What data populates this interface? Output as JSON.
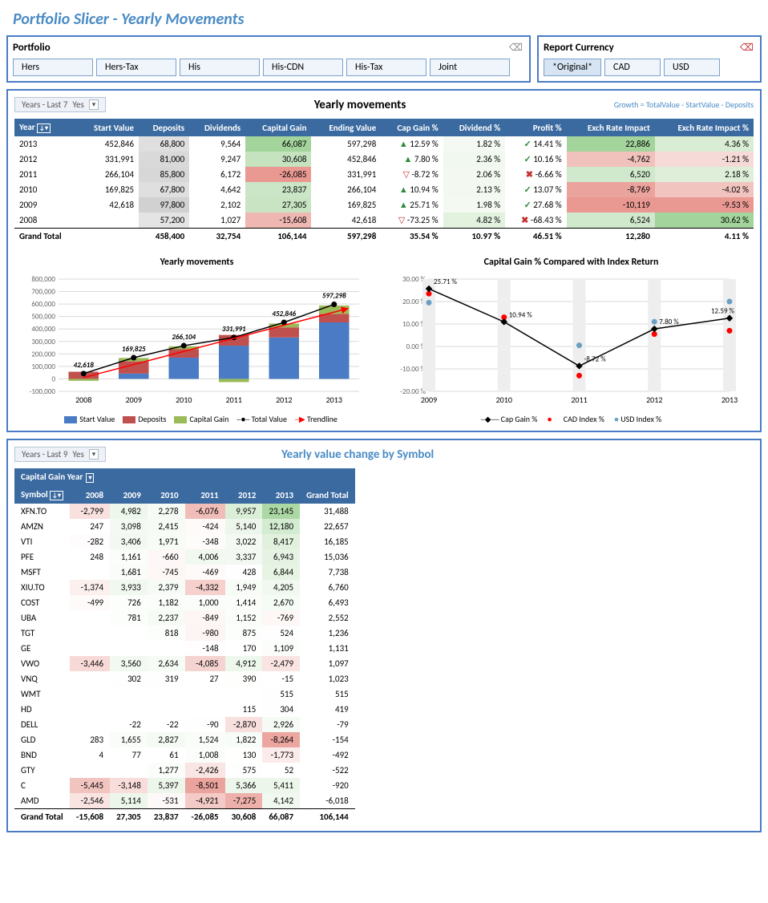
{
  "title": "Portfolio Slicer - Yearly Movements",
  "portfolio_slicer": {
    "title": "Portfolio",
    "items": [
      "Hers",
      "Hers-Tax",
      "His",
      "His-CDN",
      "His-Tax",
      "Joint"
    ]
  },
  "currency_slicer": {
    "title": "Report Currency",
    "items": [
      "*Original*",
      "CAD",
      "USD"
    ],
    "selected": 0
  },
  "filter1": {
    "label": "Years - Last 7",
    "value": "Yes"
  },
  "filter2": {
    "label": "Years - Last 9",
    "value": "Yes"
  },
  "section1_title": "Yearly movements",
  "section1_formula": "Growth = TotalValue - StartValue - Deposits",
  "colors": {
    "header_bg": "#3b6aa0",
    "cg_green_hi": "#a3d49b",
    "cg_green_lo": "#e2f0de",
    "cg_red_hi": "#e99992",
    "cg_red_lo": "#f8e4e2",
    "bar_start": "#4a7bc4",
    "bar_dep": "#c0504d",
    "bar_cg": "#9bbb59",
    "trend": "#ff0000",
    "grid": "#d9d9d9"
  },
  "movements": {
    "columns": [
      "Year",
      "Start Value",
      "Deposits",
      "Dividends",
      "Capital Gain",
      "Ending Value",
      "Cap Gain %",
      "Dividend %",
      "Profit %",
      "Exch Rate Impact",
      "Exch Rate Impact %"
    ],
    "rows": [
      {
        "year": "2013",
        "start": 452846,
        "dep": 68800,
        "div": 9564,
        "cg": 66087,
        "end": 597298,
        "cgp": 12.59,
        "divp": 1.82,
        "pp": 14.41,
        "er": 22886,
        "erp": 4.36,
        "cg_dir": "up",
        "p_dir": "ok"
      },
      {
        "year": "2012",
        "start": 331991,
        "dep": 81000,
        "div": 9247,
        "cg": 30608,
        "end": 452846,
        "cgp": 7.8,
        "divp": 2.36,
        "pp": 10.16,
        "er": -4762,
        "erp": -1.21,
        "cg_dir": "up",
        "p_dir": "ok"
      },
      {
        "year": "2011",
        "start": 266104,
        "dep": 85800,
        "div": 6172,
        "cg": -26085,
        "end": 331991,
        "cgp": -8.72,
        "divp": 2.06,
        "pp": -6.66,
        "er": 6520,
        "erp": 2.18,
        "cg_dir": "dn",
        "p_dir": "x"
      },
      {
        "year": "2010",
        "start": 169825,
        "dep": 67800,
        "div": 4642,
        "cg": 23837,
        "end": 266104,
        "cgp": 10.94,
        "divp": 2.13,
        "pp": 13.07,
        "er": -8769,
        "erp": -4.02,
        "cg_dir": "up",
        "p_dir": "ok"
      },
      {
        "year": "2009",
        "start": 42618,
        "dep": 97800,
        "div": 2102,
        "cg": 27305,
        "end": 169825,
        "cgp": 25.71,
        "divp": 1.98,
        "pp": 27.68,
        "er": -10119,
        "erp": -9.53,
        "cg_dir": "up",
        "p_dir": "ok"
      },
      {
        "year": "2008",
        "start": null,
        "dep": 57200,
        "div": 1027,
        "cg": -15608,
        "end": 42618,
        "cgp": -73.25,
        "divp": 4.82,
        "pp": -68.43,
        "er": 6524,
        "erp": 30.62,
        "cg_dir": "dn",
        "p_dir": "x"
      }
    ],
    "total": {
      "label": "Grand Total",
      "dep": 458400,
      "div": 32754,
      "cg": 106144,
      "end": 597298,
      "cgp": 35.54,
      "divp": 10.97,
      "pp": 46.51,
      "er": 12280,
      "erp": 4.11
    }
  },
  "bar_chart": {
    "title": "Yearly movements",
    "type": "stacked-bar",
    "categories": [
      "2008",
      "2009",
      "2010",
      "2011",
      "2012",
      "2013"
    ],
    "y_axis": {
      "min": -100000,
      "max": 800000,
      "step": 100000
    },
    "series": {
      "start": [
        0,
        42618,
        169825,
        266104,
        331991,
        452846
      ],
      "deposits": [
        57200,
        97800,
        67800,
        85800,
        81000,
        68800
      ],
      "cap_gain": [
        -15608,
        27305,
        23837,
        -26085,
        30608,
        66087
      ],
      "total": [
        42618,
        169825,
        266104,
        331991,
        452846,
        597298
      ]
    },
    "labels": [
      "42,618",
      "169,825",
      "266,104",
      "331,991",
      "452,846",
      "597,298"
    ],
    "legend": [
      "Start Value",
      "Deposits",
      "Capital Gain",
      "Total Value",
      "Trendline"
    ]
  },
  "line_chart": {
    "title": "Capital Gain % Compared with Index Return",
    "type": "line",
    "categories": [
      "2009",
      "2010",
      "2011",
      "2012",
      "2013"
    ],
    "y_axis": {
      "min": -20,
      "max": 30,
      "step": 10
    },
    "series": {
      "cap_gain": [
        25.71,
        10.94,
        -8.72,
        7.8,
        12.59
      ],
      "cad_index": [
        23.5,
        13.0,
        -13.0,
        5.5,
        7.0
      ],
      "usd_index": [
        19.5,
        11.0,
        0.5,
        11.0,
        20.0
      ]
    },
    "legend": [
      "Cap Gain %",
      "CAD Index %",
      "USD Index %"
    ],
    "colors": {
      "cap_gain": "#000000",
      "cad": "#ff0000",
      "usd": "#6aa0c4"
    }
  },
  "section2_title": "Yearly value change by Symbol",
  "symbol_table": {
    "header_label": "Capital Gain Year",
    "years": [
      "2008",
      "2009",
      "2010",
      "2011",
      "2012",
      "2013"
    ],
    "rows": [
      {
        "sym": "XFN.TO",
        "v": [
          -2799,
          4982,
          2278,
          -6076,
          9957,
          23145
        ],
        "gt": 31488
      },
      {
        "sym": "AMZN",
        "v": [
          247,
          3098,
          2415,
          -424,
          5140,
          12180
        ],
        "gt": 22657
      },
      {
        "sym": "VTI",
        "v": [
          -282,
          3406,
          1971,
          -348,
          3022,
          8417
        ],
        "gt": 16185
      },
      {
        "sym": "PFE",
        "v": [
          248,
          1161,
          -660,
          4006,
          3337,
          6943
        ],
        "gt": 15036
      },
      {
        "sym": "MSFT",
        "v": [
          null,
          1681,
          -745,
          -469,
          428,
          6844
        ],
        "gt": 7738
      },
      {
        "sym": "XIU.TO",
        "v": [
          -1374,
          3933,
          2379,
          -4332,
          1949,
          4205
        ],
        "gt": 6760
      },
      {
        "sym": "COST",
        "v": [
          -499,
          726,
          1182,
          1000,
          1414,
          2670
        ],
        "gt": 6493
      },
      {
        "sym": "UBA",
        "v": [
          null,
          781,
          2237,
          -849,
          1152,
          -769
        ],
        "gt": 2552
      },
      {
        "sym": "TGT",
        "v": [
          null,
          null,
          818,
          -980,
          875,
          524
        ],
        "gt": 1236
      },
      {
        "sym": "GE",
        "v": [
          null,
          null,
          null,
          -148,
          170,
          1109
        ],
        "gt": 1131
      },
      {
        "sym": "VWO",
        "v": [
          -3446,
          3560,
          2634,
          -4085,
          4912,
          -2479
        ],
        "gt": 1097
      },
      {
        "sym": "VNQ",
        "v": [
          null,
          302,
          319,
          27,
          390,
          -15
        ],
        "gt": 1023
      },
      {
        "sym": "WMT",
        "v": [
          null,
          null,
          null,
          null,
          null,
          515
        ],
        "gt": 515
      },
      {
        "sym": "HD",
        "v": [
          null,
          null,
          null,
          null,
          115,
          304
        ],
        "gt": 419
      },
      {
        "sym": "DELL",
        "v": [
          null,
          -22,
          -22,
          -90,
          -2870,
          2926
        ],
        "gt": -79
      },
      {
        "sym": "GLD",
        "v": [
          283,
          1655,
          2827,
          1524,
          1822,
          -8264
        ],
        "gt": -154
      },
      {
        "sym": "BND",
        "v": [
          4,
          77,
          61,
          1008,
          130,
          -1773
        ],
        "gt": -492
      },
      {
        "sym": "GTY",
        "v": [
          null,
          null,
          1277,
          -2426,
          575,
          52
        ],
        "gt": -522
      },
      {
        "sym": "C",
        "v": [
          -5445,
          -3148,
          5397,
          -8501,
          5366,
          5411
        ],
        "gt": -920
      },
      {
        "sym": "AMD",
        "v": [
          -2546,
          5114,
          -531,
          -4921,
          -7275,
          4142
        ],
        "gt": -6018
      }
    ],
    "total": {
      "label": "Grand Total",
      "v": [
        -15608,
        27305,
        23837,
        -26085,
        30608,
        66087
      ],
      "gt": 106144
    },
    "heat": {
      "pos_max": 23145,
      "neg_max": -8501
    }
  }
}
